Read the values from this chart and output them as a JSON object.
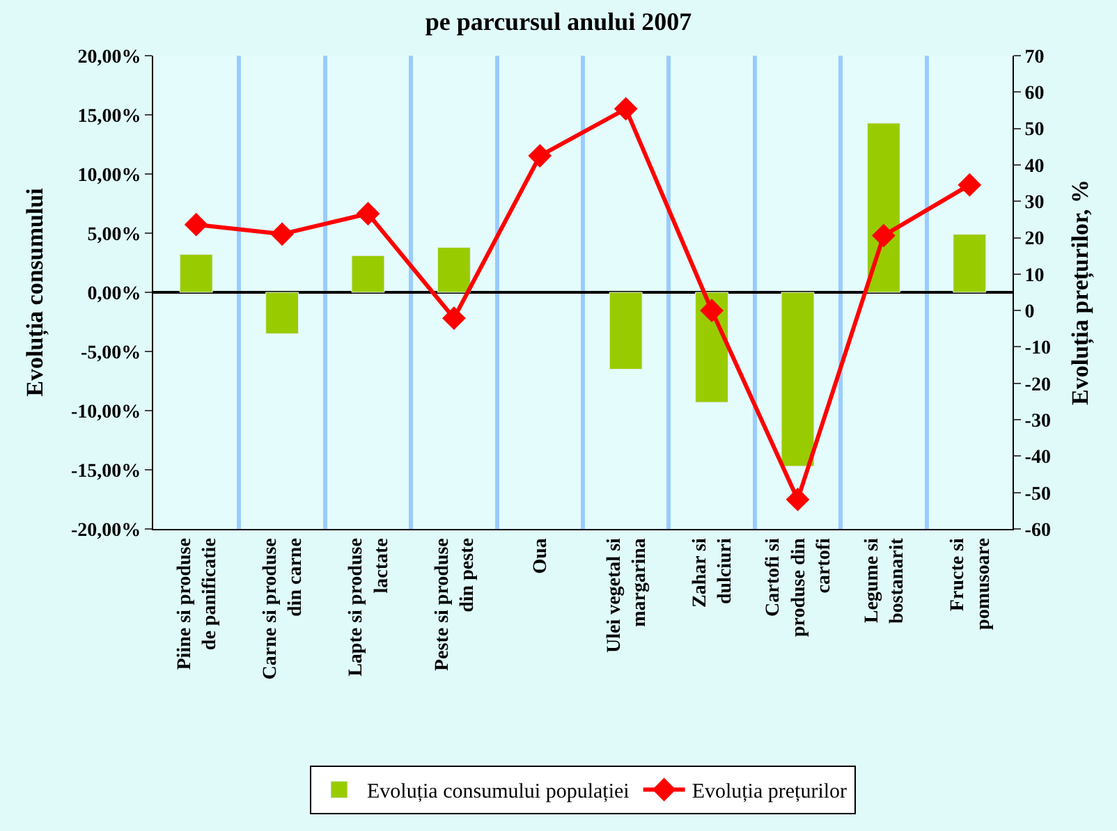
{
  "chart_data": {
    "type": "bar",
    "title": "pe parcursul anului 2007",
    "ylabel": "Evoluția consumului",
    "y2label": "Evoluția prețurilor, %",
    "categories": [
      "Piine si produse de panificatie",
      "Carne si produse din carne",
      "Lapte si produse lactate",
      "Peste si produse din peste",
      "Oua",
      "Ulei vegetal si margarina",
      "Zahar si dulciuri",
      "Cartofi si produse din cartofi",
      "Legume si bostanarit",
      "Fructe si pomusoare"
    ],
    "series": [
      {
        "name": "Evoluția consumului populației",
        "color": "#99cc00",
        "values": [
          3.2,
          -3.5,
          3.1,
          3.8,
          null,
          -6.5,
          -9.3,
          -14.7,
          14.3,
          4.9
        ]
      },
      {
        "name": "Evoluția prețurilor",
        "type": "line",
        "axis": "y2",
        "color": "#ff0000",
        "marker": "diamond",
        "line_style": "solid",
        "values": [
          23.6,
          21,
          26.6,
          -2.1,
          42.5,
          55.4,
          0,
          -51.9,
          20.6,
          34.5
        ]
      }
    ],
    "ylim": [
      -20,
      20
    ],
    "yticks": [
      {
        "value": -20,
        "label": "-20,00%"
      },
      {
        "value": -15,
        "label": "-15,00%"
      },
      {
        "value": -10,
        "label": "-10,00%"
      },
      {
        "value": -5,
        "label": "-5,00%"
      },
      {
        "value": 0,
        "label": "0,00%"
      },
      {
        "value": 5,
        "label": "5,00%"
      },
      {
        "value": 10,
        "label": "10,00%"
      },
      {
        "value": 15,
        "label": "15,00%"
      },
      {
        "value": 20,
        "label": "20,00%"
      }
    ],
    "y2lim": [
      -60,
      70
    ],
    "y2ticks": [
      -60,
      -50,
      -40,
      -30,
      -20,
      -10,
      0,
      10,
      20,
      30,
      40,
      50,
      60,
      70
    ],
    "grid": "x",
    "legend": "bottom"
  }
}
